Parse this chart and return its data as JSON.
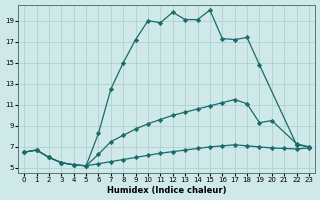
{
  "xlabel": "Humidex (Indice chaleur)",
  "ylabel": "",
  "bg_color": "#cfe8e8",
  "grid_color": "#aacece",
  "line_color": "#1a6b6b",
  "xlim": [
    -0.5,
    23.5
  ],
  "ylim": [
    4.5,
    20.5
  ],
  "xticks": [
    0,
    1,
    2,
    3,
    4,
    5,
    6,
    7,
    8,
    9,
    10,
    11,
    12,
    13,
    14,
    15,
    16,
    17,
    18,
    19,
    20,
    21,
    22,
    23
  ],
  "yticks": [
    5,
    7,
    9,
    11,
    13,
    15,
    17,
    19
  ],
  "line1_x": [
    0,
    1,
    2,
    3,
    4,
    5,
    6,
    7,
    8,
    9,
    10,
    11,
    12,
    13,
    14,
    15,
    16,
    17,
    18,
    19,
    22,
    23
  ],
  "line1_y": [
    6.5,
    6.7,
    6.0,
    5.5,
    5.3,
    5.2,
    8.3,
    12.5,
    15.0,
    17.2,
    19.0,
    18.8,
    19.8,
    19.1,
    19.1,
    20.0,
    17.3,
    17.2,
    17.4,
    14.8,
    7.2,
    7.0
  ],
  "line2_x": [
    0,
    1,
    2,
    3,
    4,
    5,
    6,
    7,
    8,
    9,
    10,
    11,
    12,
    13,
    14,
    15,
    16,
    17,
    18,
    19,
    20,
    22,
    23
  ],
  "line2_y": [
    6.5,
    6.7,
    6.0,
    5.5,
    5.3,
    5.2,
    6.3,
    7.5,
    8.1,
    8.7,
    9.2,
    9.6,
    10.0,
    10.3,
    10.6,
    10.9,
    11.2,
    11.5,
    11.1,
    9.3,
    9.5,
    7.3,
    7.0
  ],
  "line3_x": [
    0,
    1,
    2,
    3,
    4,
    5,
    6,
    7,
    8,
    9,
    10,
    11,
    12,
    13,
    14,
    15,
    16,
    17,
    18,
    19,
    20,
    21,
    22,
    23
  ],
  "line3_y": [
    6.5,
    6.7,
    6.0,
    5.5,
    5.3,
    5.2,
    5.4,
    5.6,
    5.8,
    6.0,
    6.2,
    6.4,
    6.55,
    6.7,
    6.85,
    7.0,
    7.1,
    7.2,
    7.1,
    7.0,
    6.9,
    6.85,
    6.8,
    6.9
  ],
  "marker": "D",
  "marker_size": 2.2,
  "line_width": 0.9
}
